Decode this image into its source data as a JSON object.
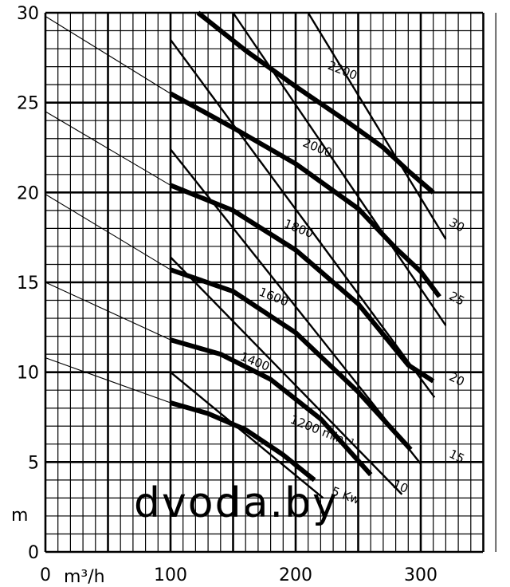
{
  "chart_data": {
    "type": "line",
    "grid": true,
    "xlim": [
      0,
      365
    ],
    "ylim": [
      0,
      30
    ],
    "xlabel": "m³/h",
    "ylabel": "m",
    "speed_unit": "min⁻¹",
    "power_unit": "Kw",
    "x_ticks": [
      {
        "v": 0,
        "label": "0"
      },
      {
        "v": 100,
        "label": "100"
      },
      {
        "v": 200,
        "label": "200"
      },
      {
        "v": 300,
        "label": "300"
      }
    ],
    "y_ticks": [
      {
        "v": 0,
        "label": "0"
      },
      {
        "v": 5,
        "label": "5"
      },
      {
        "v": 10,
        "label": "10"
      },
      {
        "v": 15,
        "label": "15"
      },
      {
        "v": 20,
        "label": "20"
      },
      {
        "v": 25,
        "label": "25"
      },
      {
        "v": 30,
        "label": "30"
      }
    ],
    "speed_curves": [
      {
        "label": "1200",
        "suffix": "min⁻¹",
        "label_at": [
          195,
          7.2
        ],
        "points": [
          [
            100,
            8.3
          ],
          [
            130,
            7.7
          ],
          [
            160,
            6.8
          ],
          [
            190,
            5.4
          ],
          [
            215,
            4.0
          ]
        ]
      },
      {
        "label": "1400",
        "label_at": [
          155,
          10.7
        ],
        "points": [
          [
            100,
            11.8
          ],
          [
            140,
            11.0
          ],
          [
            180,
            9.6
          ],
          [
            220,
            7.4
          ],
          [
            260,
            4.3
          ]
        ]
      },
      {
        "label": "1600",
        "label_at": [
          170,
          14.3
        ],
        "points": [
          [
            100,
            15.7
          ],
          [
            150,
            14.5
          ],
          [
            200,
            12.2
          ],
          [
            250,
            8.9
          ],
          [
            292,
            5.7
          ]
        ]
      },
      {
        "label": "1800",
        "label_at": [
          190,
          18.1
        ],
        "points": [
          [
            100,
            20.4
          ],
          [
            150,
            19.0
          ],
          [
            200,
            16.8
          ],
          [
            250,
            13.8
          ],
          [
            290,
            10.4
          ],
          [
            310,
            9.5
          ]
        ]
      },
      {
        "label": "2000",
        "label_at": [
          205,
          22.6
        ],
        "points": [
          [
            100,
            25.5
          ],
          [
            150,
            23.6
          ],
          [
            200,
            21.6
          ],
          [
            250,
            19.1
          ],
          [
            280,
            16.9
          ],
          [
            300,
            15.6
          ],
          [
            315,
            14.2
          ]
        ]
      },
      {
        "label": "2200",
        "label_at": [
          225,
          26.9
        ],
        "points": [
          [
            122,
            30.0
          ],
          [
            160,
            27.9
          ],
          [
            200,
            25.9
          ],
          [
            240,
            24.0
          ],
          [
            270,
            22.5
          ],
          [
            290,
            21.2
          ],
          [
            310,
            20.0
          ]
        ]
      }
    ],
    "power_lines": [
      {
        "label": "5",
        "suffix": "Kw",
        "label_at": [
          228,
          3.2
        ],
        "points": [
          [
            100,
            10.0
          ],
          [
            222,
            3.0
          ]
        ]
      },
      {
        "label": "10",
        "label_at": [
          277,
          3.6
        ],
        "points": [
          [
            100,
            16.4
          ],
          [
            285,
            3.2
          ]
        ]
      },
      {
        "label": "15",
        "label_at": [
          322,
          5.3
        ],
        "points": [
          [
            100,
            22.4
          ],
          [
            300,
            4.9
          ]
        ]
      },
      {
        "label": "20",
        "label_at": [
          322,
          9.6
        ],
        "points": [
          [
            100,
            28.5
          ],
          [
            311,
            8.6
          ]
        ]
      },
      {
        "label": "25",
        "label_at": [
          322,
          14.1
        ],
        "points": [
          [
            150,
            30.0
          ],
          [
            320,
            12.6
          ]
        ]
      },
      {
        "label": "30",
        "label_at": [
          322,
          18.2
        ],
        "points": [
          [
            210,
            30.0
          ],
          [
            320,
            17.4
          ]
        ]
      }
    ],
    "system_lines": [
      {
        "points": [
          [
            0,
            29.8
          ],
          [
            100,
            25.5
          ]
        ]
      },
      {
        "points": [
          [
            0,
            24.5
          ],
          [
            100,
            20.4
          ]
        ]
      },
      {
        "points": [
          [
            0,
            19.9
          ],
          [
            100,
            15.7
          ]
        ]
      },
      {
        "points": [
          [
            0,
            15.0
          ],
          [
            100,
            11.8
          ]
        ]
      },
      {
        "points": [
          [
            0,
            10.8
          ],
          [
            100,
            8.3
          ]
        ]
      }
    ]
  },
  "watermark": "dvoda.by"
}
